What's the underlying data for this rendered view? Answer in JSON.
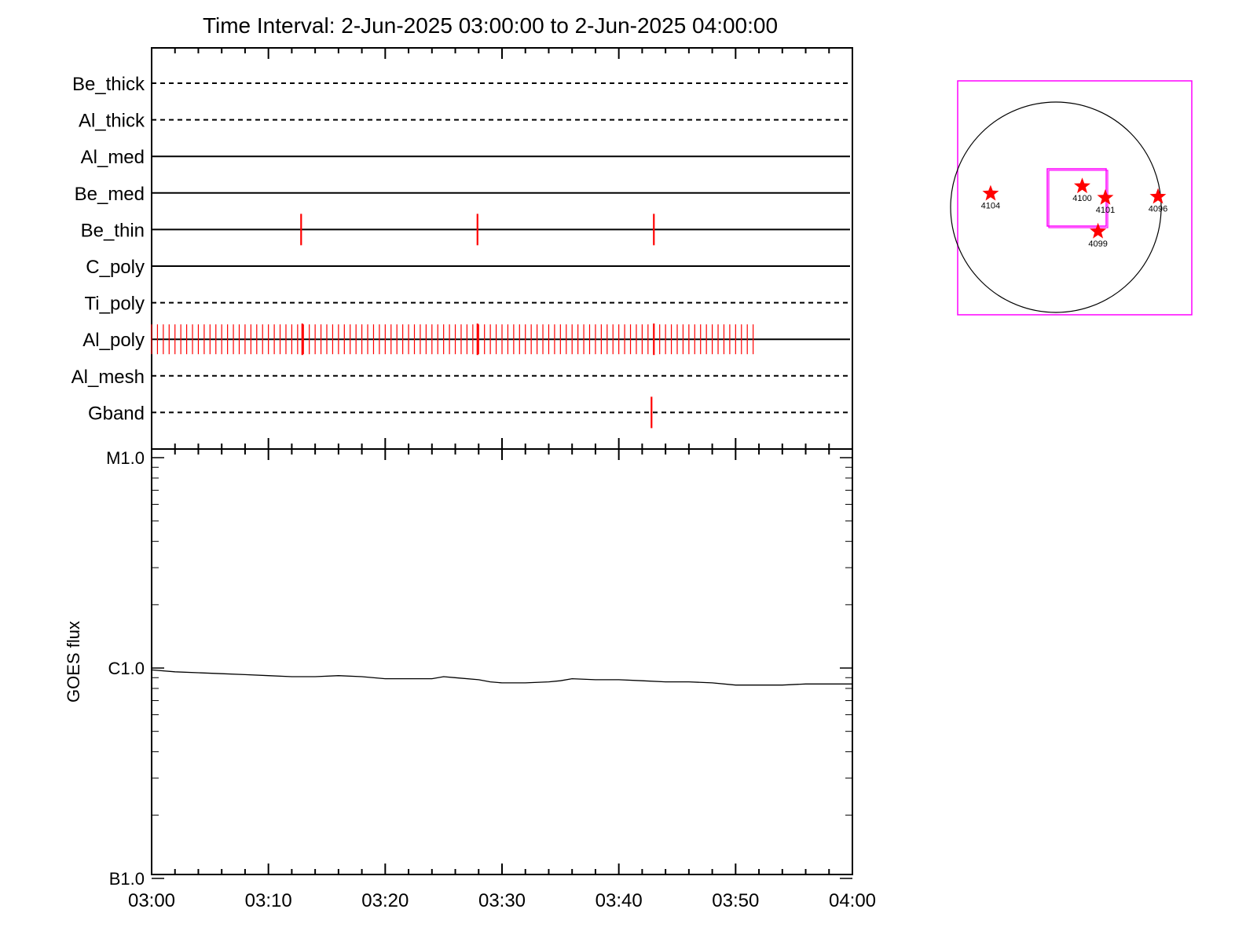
{
  "title": "Time Interval:  2-Jun-2025 03:00:00 to  2-Jun-2025 04:00:00",
  "chart_data": [
    {
      "type": "timeline",
      "x_range_minutes": [
        0,
        60
      ],
      "x_tick_labels": [
        "03:00",
        "03:10",
        "03:20",
        "03:30",
        "03:40",
        "03:50",
        "04:00"
      ],
      "channels": [
        {
          "name": "Be_thick",
          "style": "dashed",
          "events": [],
          "major_events": []
        },
        {
          "name": "Al_thick",
          "style": "dashed",
          "events": [],
          "major_events": []
        },
        {
          "name": "Al_med",
          "style": "solid",
          "events": [],
          "major_events": []
        },
        {
          "name": "Be_med",
          "style": "solid",
          "events": [],
          "major_events": []
        },
        {
          "name": "Be_thin",
          "style": "solid",
          "events": [],
          "major_events": [
            12.8,
            27.9,
            43.0
          ]
        },
        {
          "name": "C_poly",
          "style": "solid",
          "events": [],
          "major_events": []
        },
        {
          "name": "Ti_poly",
          "style": "dashed",
          "events": [],
          "major_events": []
        },
        {
          "name": "Al_poly",
          "style": "solid",
          "events": "every 0.5 min from 0.0 to 51.5",
          "major_events": [
            12.9,
            27.9,
            43.0
          ]
        },
        {
          "name": "Al_mesh",
          "style": "dashed",
          "events": [],
          "major_events": []
        },
        {
          "name": "Gband",
          "style": "dashed",
          "events": [],
          "major_events": [
            42.8
          ]
        }
      ]
    },
    {
      "type": "line",
      "ylabel": "GOES flux",
      "y_scale": "log",
      "y_tick_labels": [
        "M1.0",
        "C1.0",
        "B1.0"
      ],
      "ylim": [
        "B1.0",
        "M1.0"
      ],
      "x_minutes": [
        0,
        2,
        4,
        6,
        8,
        10,
        12,
        14,
        16,
        18,
        20,
        22,
        24,
        25,
        26,
        28,
        29,
        30,
        32,
        34,
        35,
        36,
        38,
        40,
        42,
        44,
        46,
        48,
        50,
        52,
        54,
        56,
        58,
        60
      ],
      "y_c_class": [
        0.98,
        0.96,
        0.95,
        0.94,
        0.93,
        0.92,
        0.91,
        0.91,
        0.92,
        0.91,
        0.89,
        0.89,
        0.89,
        0.91,
        0.9,
        0.88,
        0.86,
        0.85,
        0.85,
        0.86,
        0.87,
        0.89,
        0.88,
        0.88,
        0.87,
        0.86,
        0.86,
        0.85,
        0.83,
        0.83,
        0.83,
        0.84,
        0.84,
        0.84
      ],
      "color": "#000000"
    },
    {
      "type": "scatter",
      "name": "solar-disk-map",
      "colors": {
        "frame": "#ff00ff",
        "star": "#ff0000",
        "disk": "#000000"
      },
      "regions": [
        {
          "label": "4104",
          "x": -0.62,
          "y": 0.13
        },
        {
          "label": "4100",
          "x": 0.25,
          "y": 0.2
        },
        {
          "label": "4101",
          "x": 0.47,
          "y": 0.09
        },
        {
          "label": "4096",
          "x": 0.97,
          "y": 0.1
        },
        {
          "label": "4099",
          "x": 0.4,
          "y": -0.23
        }
      ]
    }
  ]
}
